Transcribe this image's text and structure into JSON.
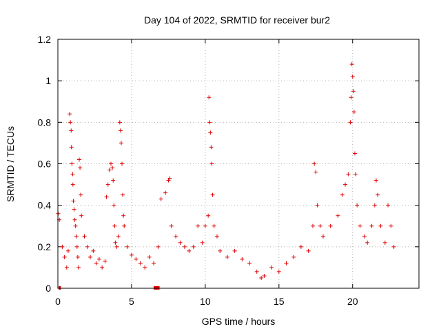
{
  "chart_data": {
    "type": "scatter",
    "title": "Day 104 of 2022, SRMTID for receiver bur2",
    "xlabel": "GPS time / hours",
    "ylabel": "SRMTID / TECUs",
    "xlim": [
      0,
      24.5
    ],
    "ylim": [
      0,
      1.2
    ],
    "grid": true,
    "x_ticks": [
      0,
      5,
      10,
      15,
      20
    ],
    "x_tick_labels": [
      "0",
      "5",
      "10",
      "15",
      "20"
    ],
    "y_ticks": [
      0,
      0.2,
      0.4,
      0.6,
      0.8,
      1,
      1.2
    ],
    "y_tick_labels": [
      "0",
      "0.2",
      "0.4",
      "0.6",
      "0.8",
      "1",
      "1.2"
    ],
    "marker": "plus",
    "color": "#e00000",
    "series": [
      {
        "name": "SRMTID",
        "points": [
          [
            0.02,
            0.36
          ],
          [
            0.1,
            0.33
          ],
          [
            0.3,
            0.2
          ],
          [
            0.45,
            0.15
          ],
          [
            0.6,
            0.1
          ],
          [
            0.7,
            0.18
          ],
          [
            0.8,
            0.84
          ],
          [
            0.85,
            0.8
          ],
          [
            0.9,
            0.76
          ],
          [
            0.92,
            0.68
          ],
          [
            0.95,
            0.6
          ],
          [
            1.0,
            0.55
          ],
          [
            1.02,
            0.5
          ],
          [
            1.05,
            0.42
          ],
          [
            1.1,
            0.38
          ],
          [
            1.15,
            0.33
          ],
          [
            1.2,
            0.3
          ],
          [
            1.25,
            0.25
          ],
          [
            1.3,
            0.2
          ],
          [
            1.35,
            0.15
          ],
          [
            1.4,
            0.1
          ],
          [
            1.45,
            0.62
          ],
          [
            1.5,
            0.58
          ],
          [
            1.55,
            0.45
          ],
          [
            1.6,
            0.35
          ],
          [
            1.8,
            0.25
          ],
          [
            2.0,
            0.2
          ],
          [
            2.2,
            0.15
          ],
          [
            2.4,
            0.18
          ],
          [
            2.6,
            0.12
          ],
          [
            2.8,
            0.14
          ],
          [
            3.0,
            0.1
          ],
          [
            3.2,
            0.13
          ],
          [
            3.3,
            0.44
          ],
          [
            3.4,
            0.5
          ],
          [
            3.5,
            0.57
          ],
          [
            3.6,
            0.6
          ],
          [
            3.7,
            0.58
          ],
          [
            3.75,
            0.52
          ],
          [
            3.8,
            0.4
          ],
          [
            3.85,
            0.3
          ],
          [
            3.9,
            0.22
          ],
          [
            4.0,
            0.2
          ],
          [
            4.1,
            0.25
          ],
          [
            4.2,
            0.8
          ],
          [
            4.25,
            0.76
          ],
          [
            4.3,
            0.7
          ],
          [
            4.35,
            0.6
          ],
          [
            4.4,
            0.45
          ],
          [
            4.45,
            0.35
          ],
          [
            4.5,
            0.3
          ],
          [
            4.7,
            0.2
          ],
          [
            5.0,
            0.16
          ],
          [
            5.3,
            0.14
          ],
          [
            5.6,
            0.12
          ],
          [
            5.9,
            0.1
          ],
          [
            6.2,
            0.15
          ],
          [
            6.5,
            0.12
          ],
          [
            6.8,
            0.2
          ],
          [
            7.0,
            0.43
          ],
          [
            7.3,
            0.46
          ],
          [
            7.5,
            0.52
          ],
          [
            7.6,
            0.53
          ],
          [
            7.7,
            0.3
          ],
          [
            8.0,
            0.25
          ],
          [
            8.3,
            0.22
          ],
          [
            8.6,
            0.2
          ],
          [
            8.9,
            0.18
          ],
          [
            9.2,
            0.2
          ],
          [
            9.5,
            0.3
          ],
          [
            9.8,
            0.22
          ],
          [
            10.0,
            0.3
          ],
          [
            10.2,
            0.35
          ],
          [
            10.25,
            0.92
          ],
          [
            10.3,
            0.8
          ],
          [
            10.35,
            0.75
          ],
          [
            10.4,
            0.68
          ],
          [
            10.45,
            0.6
          ],
          [
            10.5,
            0.45
          ],
          [
            10.6,
            0.3
          ],
          [
            10.8,
            0.25
          ],
          [
            11.0,
            0.18
          ],
          [
            11.5,
            0.15
          ],
          [
            12.0,
            0.18
          ],
          [
            12.5,
            0.14
          ],
          [
            13.0,
            0.12
          ],
          [
            13.5,
            0.08
          ],
          [
            13.8,
            0.05
          ],
          [
            14.0,
            0.06
          ],
          [
            14.5,
            0.1
          ],
          [
            15.0,
            0.08
          ],
          [
            15.5,
            0.12
          ],
          [
            16.0,
            0.15
          ],
          [
            16.5,
            0.2
          ],
          [
            17.0,
            0.18
          ],
          [
            17.3,
            0.3
          ],
          [
            17.4,
            0.6
          ],
          [
            17.5,
            0.56
          ],
          [
            17.6,
            0.4
          ],
          [
            17.8,
            0.3
          ],
          [
            18.0,
            0.25
          ],
          [
            18.5,
            0.3
          ],
          [
            19.0,
            0.35
          ],
          [
            19.3,
            0.45
          ],
          [
            19.5,
            0.5
          ],
          [
            19.7,
            0.55
          ],
          [
            19.85,
            0.8
          ],
          [
            19.9,
            0.92
          ],
          [
            19.95,
            1.08
          ],
          [
            20.0,
            1.02
          ],
          [
            20.05,
            0.95
          ],
          [
            20.1,
            0.85
          ],
          [
            20.15,
            0.65
          ],
          [
            20.2,
            0.55
          ],
          [
            20.3,
            0.4
          ],
          [
            20.5,
            0.3
          ],
          [
            20.8,
            0.25
          ],
          [
            21.0,
            0.22
          ],
          [
            21.3,
            0.3
          ],
          [
            21.5,
            0.4
          ],
          [
            21.6,
            0.52
          ],
          [
            21.7,
            0.45
          ],
          [
            21.9,
            0.3
          ],
          [
            22.2,
            0.22
          ],
          [
            22.4,
            0.4
          ],
          [
            22.6,
            0.3
          ],
          [
            22.8,
            0.2
          ]
        ]
      }
    ],
    "bottom_markers": {
      "color": "#e00000",
      "segments": [
        [
          0.05,
          0.2
        ],
        [
          6.5,
          6.9
        ]
      ]
    }
  }
}
